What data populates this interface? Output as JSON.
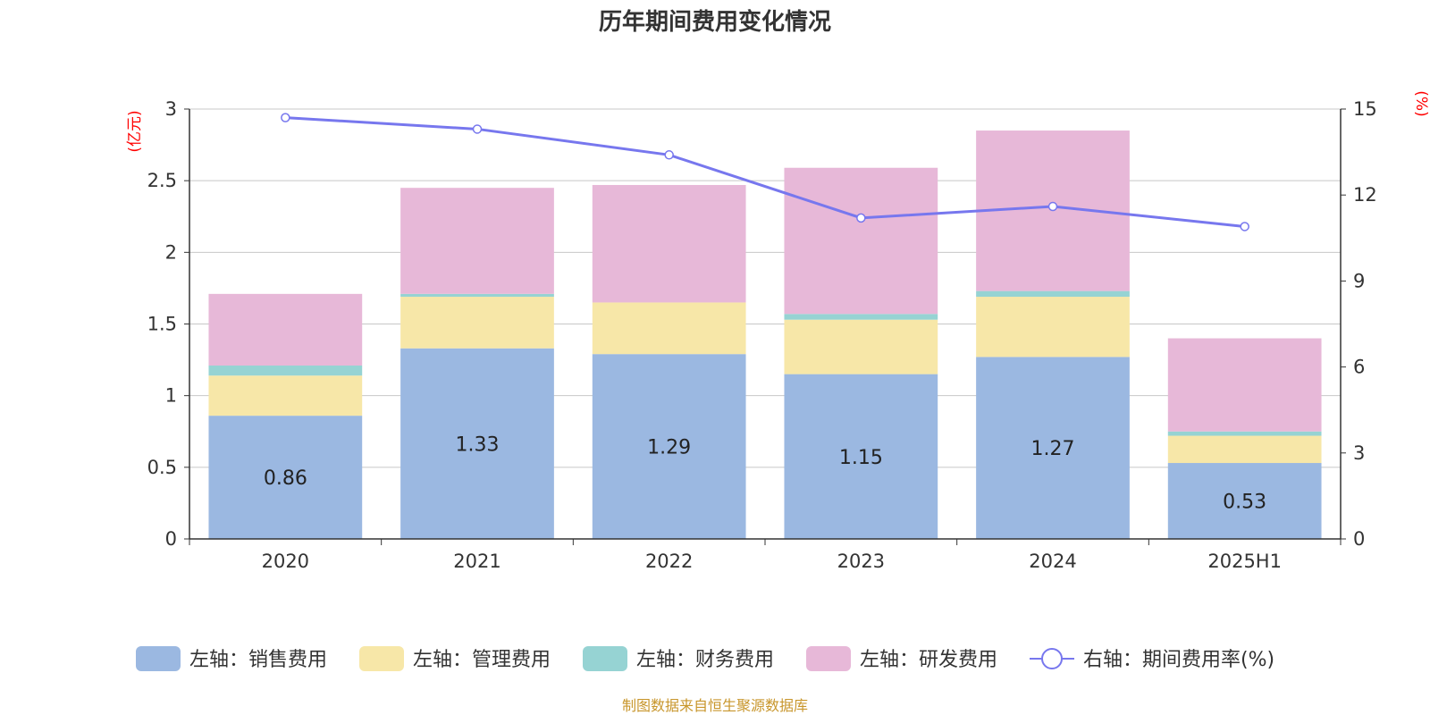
{
  "chart_data": {
    "type": "bar",
    "stacked": true,
    "title": "历年期间费用变化情况",
    "source": "制图数据来自恒生聚源数据库",
    "categories": [
      "2020",
      "2021",
      "2022",
      "2023",
      "2024",
      "2025H1"
    ],
    "y_left": {
      "label": "(亿元)",
      "range": [
        0,
        3
      ],
      "ticks": [
        "0",
        "0.5",
        "1",
        "1.5",
        "2",
        "2.5",
        "3"
      ]
    },
    "y_right": {
      "label": "(%)",
      "range": [
        0,
        15
      ],
      "ticks": [
        "0",
        "3",
        "6",
        "9",
        "12",
        "15"
      ]
    },
    "grid": true,
    "legend_position": "bottom",
    "series": [
      {
        "name": "左轴：销售费用",
        "color": "#9bb8e1",
        "axis": "left",
        "values": [
          0.86,
          1.33,
          1.29,
          1.15,
          1.27,
          0.53
        ],
        "data_labels": [
          "0.86",
          "1.33",
          "1.29",
          "1.15",
          "1.27",
          "0.53"
        ]
      },
      {
        "name": "左轴：管理费用",
        "color": "#f7e7a8",
        "axis": "left",
        "values": [
          0.28,
          0.36,
          0.36,
          0.38,
          0.42,
          0.19
        ]
      },
      {
        "name": "左轴：财务费用",
        "color": "#96d3d3",
        "axis": "left",
        "values": [
          0.07,
          0.02,
          0.0,
          0.04,
          0.04,
          0.03
        ]
      },
      {
        "name": "左轴：研发费用",
        "color": "#e7b8d8",
        "axis": "left",
        "values": [
          0.5,
          0.74,
          0.82,
          1.02,
          1.12,
          0.65
        ]
      },
      {
        "name": "右轴：期间费用率(%)",
        "color": "#7777ee",
        "axis": "right",
        "type": "line",
        "values": [
          14.7,
          14.3,
          13.4,
          11.2,
          11.6,
          10.9
        ]
      }
    ]
  }
}
